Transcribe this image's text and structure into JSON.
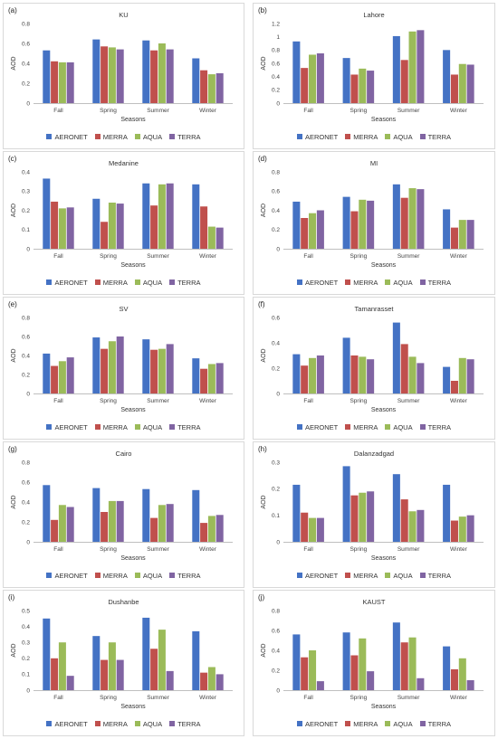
{
  "figure": {
    "categories": [
      "Fall",
      "Spring",
      "Summer",
      "Winter"
    ],
    "xlabel": "Seasons",
    "ylabel": "AOD",
    "series_names": [
      "AERONET",
      "MERRA",
      "AQUA",
      "TERRA"
    ],
    "series_colors": [
      "#4472c4",
      "#c0504d",
      "#9bbb59",
      "#8064a2"
    ]
  },
  "chart_data": [
    {
      "type": "bar",
      "label": "(a)",
      "title": "KU",
      "categories": [
        "Fall",
        "Spring",
        "Summer",
        "Winter"
      ],
      "xlabel": "Seasons",
      "ylabel": "AOD",
      "ylim": [
        0,
        0.8
      ],
      "yticks": [
        "0",
        "0.2",
        "0.4",
        "0.6",
        "0.8"
      ],
      "grid": false,
      "legend": "bottom",
      "series": [
        {
          "name": "AERONET",
          "values": [
            0.53,
            0.64,
            0.63,
            0.45
          ]
        },
        {
          "name": "MERRA",
          "values": [
            0.42,
            0.57,
            0.53,
            0.33
          ]
        },
        {
          "name": "AQUA",
          "values": [
            0.41,
            0.56,
            0.6,
            0.29
          ]
        },
        {
          "name": "TERRA",
          "values": [
            0.41,
            0.54,
            0.54,
            0.3
          ]
        }
      ]
    },
    {
      "type": "bar",
      "label": "(b)",
      "title": "Lahore",
      "categories": [
        "Fall",
        "Spring",
        "Summer",
        "Winter"
      ],
      "xlabel": "Seasons",
      "ylabel": "AOD",
      "ylim": [
        0,
        1.2
      ],
      "yticks": [
        "0",
        "0.2",
        "0.4",
        "0.6",
        "0.8",
        "1",
        "1.2"
      ],
      "grid": false,
      "legend": "bottom",
      "series": [
        {
          "name": "AERONET",
          "values": [
            0.93,
            0.68,
            1.01,
            0.8
          ]
        },
        {
          "name": "MERRA",
          "values": [
            0.53,
            0.43,
            0.65,
            0.43
          ]
        },
        {
          "name": "AQUA",
          "values": [
            0.73,
            0.52,
            1.08,
            0.59
          ]
        },
        {
          "name": "TERRA",
          "values": [
            0.75,
            0.49,
            1.1,
            0.58
          ]
        }
      ]
    },
    {
      "type": "bar",
      "label": "(c)",
      "title": "Medanine",
      "categories": [
        "Fall",
        "Spring",
        "Summer",
        "Winter"
      ],
      "xlabel": "Seasons",
      "ylabel": "AOD",
      "ylim": [
        0,
        0.4
      ],
      "yticks": [
        "0",
        "0.1",
        "0.2",
        "0.3",
        "0.4"
      ],
      "grid": false,
      "legend": "bottom",
      "series": [
        {
          "name": "AERONET",
          "values": [
            0.365,
            0.26,
            0.34,
            0.335
          ]
        },
        {
          "name": "MERRA",
          "values": [
            0.245,
            0.14,
            0.225,
            0.22
          ]
        },
        {
          "name": "AQUA",
          "values": [
            0.21,
            0.24,
            0.335,
            0.115
          ]
        },
        {
          "name": "TERRA",
          "values": [
            0.215,
            0.235,
            0.34,
            0.11
          ]
        }
      ]
    },
    {
      "type": "bar",
      "label": "(d)",
      "title": "MI",
      "categories": [
        "Fall",
        "Spring",
        "Summer",
        "Winter"
      ],
      "xlabel": "Seasons",
      "ylabel": "AOD",
      "ylim": [
        0,
        0.8
      ],
      "yticks": [
        "0",
        "0.2",
        "0.4",
        "0.6",
        "0.8"
      ],
      "grid": false,
      "legend": "bottom",
      "series": [
        {
          "name": "AERONET",
          "values": [
            0.49,
            0.54,
            0.67,
            0.41
          ]
        },
        {
          "name": "MERRA",
          "values": [
            0.32,
            0.39,
            0.53,
            0.22
          ]
        },
        {
          "name": "AQUA",
          "values": [
            0.37,
            0.51,
            0.63,
            0.3
          ]
        },
        {
          "name": "TERRA",
          "values": [
            0.4,
            0.5,
            0.62,
            0.3
          ]
        }
      ]
    },
    {
      "type": "bar",
      "label": "(e)",
      "title": "SV",
      "categories": [
        "Fall",
        "Spring",
        "Summer",
        "Winter"
      ],
      "xlabel": "Seasons",
      "ylabel": "AOD",
      "ylim": [
        0,
        0.8
      ],
      "yticks": [
        "0",
        "0.2",
        "0.4",
        "0.6",
        "0.8"
      ],
      "grid": false,
      "legend": "bottom",
      "series": [
        {
          "name": "AERONET",
          "values": [
            0.42,
            0.59,
            0.57,
            0.37
          ]
        },
        {
          "name": "MERRA",
          "values": [
            0.29,
            0.47,
            0.46,
            0.26
          ]
        },
        {
          "name": "AQUA",
          "values": [
            0.34,
            0.55,
            0.47,
            0.31
          ]
        },
        {
          "name": "TERRA",
          "values": [
            0.38,
            0.6,
            0.52,
            0.32
          ]
        }
      ]
    },
    {
      "type": "bar",
      "label": "(f)",
      "title": "Tamanrasset",
      "categories": [
        "Fall",
        "Spring",
        "Summer",
        "Winter"
      ],
      "xlabel": "Seasons",
      "ylabel": "AOD",
      "ylim": [
        0,
        0.6
      ],
      "yticks": [
        "0",
        "0.2",
        "0.4",
        "0.6"
      ],
      "grid": false,
      "legend": "bottom",
      "series": [
        {
          "name": "AERONET",
          "values": [
            0.31,
            0.44,
            0.56,
            0.21
          ]
        },
        {
          "name": "MERRA",
          "values": [
            0.22,
            0.3,
            0.39,
            0.1
          ]
        },
        {
          "name": "AQUA",
          "values": [
            0.28,
            0.29,
            0.29,
            0.28
          ]
        },
        {
          "name": "TERRA",
          "values": [
            0.3,
            0.27,
            0.24,
            0.27
          ]
        }
      ]
    },
    {
      "type": "bar",
      "label": "(g)",
      "title": "Cairo",
      "categories": [
        "Fall",
        "Spring",
        "Summer",
        "Winter"
      ],
      "xlabel": "Seasons",
      "ylabel": "AOD",
      "ylim": [
        0,
        0.8
      ],
      "yticks": [
        "0",
        "0.2",
        "0.4",
        "0.6",
        "0.8"
      ],
      "grid": false,
      "legend": "bottom",
      "series": [
        {
          "name": "AERONET",
          "values": [
            0.57,
            0.54,
            0.53,
            0.52
          ]
        },
        {
          "name": "MERRA",
          "values": [
            0.22,
            0.3,
            0.24,
            0.19
          ]
        },
        {
          "name": "AQUA",
          "values": [
            0.37,
            0.41,
            0.37,
            0.26
          ]
        },
        {
          "name": "TERRA",
          "values": [
            0.35,
            0.41,
            0.38,
            0.27
          ]
        }
      ]
    },
    {
      "type": "bar",
      "label": "(h)",
      "title": "Dalanzadgad",
      "categories": [
        "Fall",
        "Spring",
        "Summer",
        "Winter"
      ],
      "xlabel": "Seasons",
      "ylabel": "AOD",
      "ylim": [
        0,
        0.3
      ],
      "yticks": [
        "0",
        "0.1",
        "0.2",
        "0.3"
      ],
      "grid": false,
      "legend": "bottom",
      "series": [
        {
          "name": "AERONET",
          "values": [
            0.215,
            0.285,
            0.255,
            0.215
          ]
        },
        {
          "name": "MERRA",
          "values": [
            0.11,
            0.175,
            0.16,
            0.08
          ]
        },
        {
          "name": "AQUA",
          "values": [
            0.09,
            0.185,
            0.115,
            0.095
          ]
        },
        {
          "name": "TERRA",
          "values": [
            0.09,
            0.19,
            0.12,
            0.1
          ]
        }
      ]
    },
    {
      "type": "bar",
      "label": "(i)",
      "title": "Dushanbe",
      "categories": [
        "Fall",
        "Spring",
        "Summer",
        "Winter"
      ],
      "xlabel": "Seasons",
      "ylabel": "AOD",
      "ylim": [
        0,
        0.5
      ],
      "yticks": [
        "0",
        "0.1",
        "0.2",
        "0.3",
        "0.4",
        "0.5"
      ],
      "grid": false,
      "legend": "bottom",
      "series": [
        {
          "name": "AERONET",
          "values": [
            0.45,
            0.34,
            0.455,
            0.37
          ]
        },
        {
          "name": "MERRA",
          "values": [
            0.2,
            0.19,
            0.26,
            0.11
          ]
        },
        {
          "name": "AQUA",
          "values": [
            0.3,
            0.3,
            0.38,
            0.145
          ]
        },
        {
          "name": "TERRA",
          "values": [
            0.09,
            0.19,
            0.12,
            0.1
          ]
        }
      ]
    },
    {
      "type": "bar",
      "label": "(j)",
      "title": "KAUST",
      "categories": [
        "Fall",
        "Spring",
        "Summer",
        "Winter"
      ],
      "xlabel": "Seasons",
      "ylabel": "AOD",
      "ylim": [
        0,
        0.8
      ],
      "yticks": [
        "0",
        "0.2",
        "0.4",
        "0.6",
        "0.8"
      ],
      "grid": false,
      "legend": "bottom",
      "series": [
        {
          "name": "AERONET",
          "values": [
            0.56,
            0.58,
            0.68,
            0.44
          ]
        },
        {
          "name": "MERRA",
          "values": [
            0.33,
            0.35,
            0.48,
            0.21
          ]
        },
        {
          "name": "AQUA",
          "values": [
            0.4,
            0.52,
            0.53,
            0.32
          ]
        },
        {
          "name": "TERRA",
          "values": [
            0.09,
            0.19,
            0.12,
            0.1
          ]
        }
      ]
    }
  ]
}
